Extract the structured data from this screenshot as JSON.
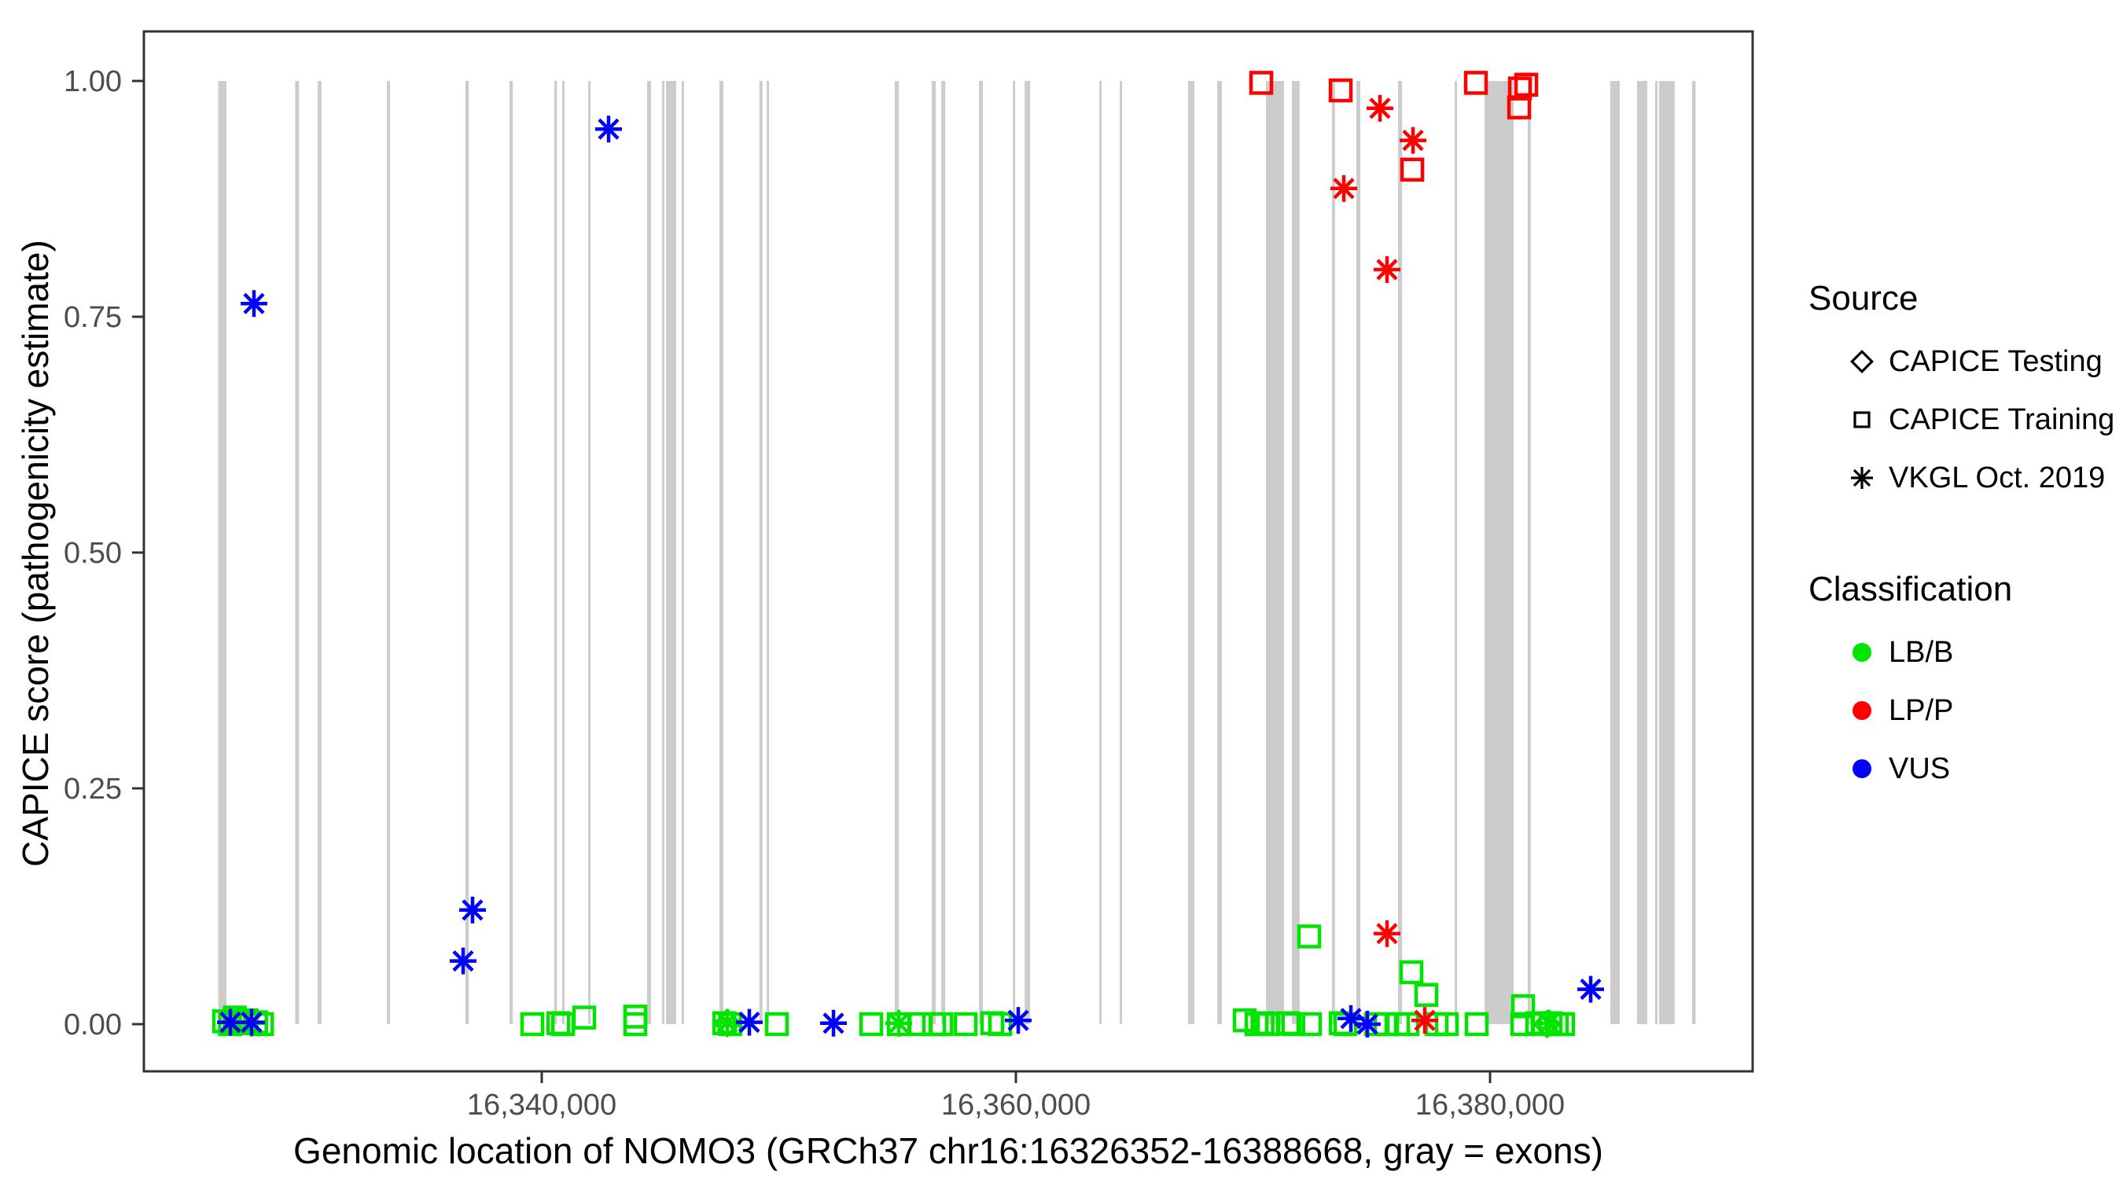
{
  "legend": {
    "source_title": "Source",
    "source_items": [
      {
        "symbol": "diamond",
        "label": "CAPICE Testing"
      },
      {
        "symbol": "square",
        "label": "CAPICE Training"
      },
      {
        "symbol": "asterisk",
        "label": "VKGL Oct. 2019"
      }
    ],
    "classification_title": "Classification",
    "classification_items": [
      {
        "color": "#00E400",
        "label": "LB/B"
      },
      {
        "color": "#FF0000",
        "label": "LP/P"
      },
      {
        "color": "#0000FF",
        "label": "VUS"
      }
    ]
  },
  "gene": {
    "name": "NOMO3",
    "assembly": "GRCh37",
    "chromosome": "chr16",
    "start": 16326352,
    "end": 16388668
  },
  "chart_data": {
    "type": "scatter",
    "title": "",
    "xlabel": "Genomic location of NOMO3 (GRCh37 chr16:16326352-16388668, gray = exons)",
    "ylabel": "CAPICE score (pathogenicity estimate)",
    "x_domain": [
      16323218,
      16391077
    ],
    "y_domain": [
      0,
      1
    ],
    "x_ticks": [
      {
        "value": 16340000,
        "label": "16,340,000"
      },
      {
        "value": 16360000,
        "label": "16,360,000"
      },
      {
        "value": 16380000,
        "label": "16,380,000"
      }
    ],
    "y_ticks": [
      {
        "value": 0.0,
        "label": "0.00"
      },
      {
        "value": 0.25,
        "label": "0.25"
      },
      {
        "value": 0.5,
        "label": "0.50"
      },
      {
        "value": 0.75,
        "label": "0.75"
      },
      {
        "value": 1.0,
        "label": "1.00"
      }
    ],
    "grid": false,
    "legend_position": "right",
    "exon_color": "#CCCCCC",
    "axis_text_color": "#4D4D4D",
    "border_color": "#333333",
    "classification_colors": {
      "LB/B": "#00E400",
      "LP/P": "#FF0000",
      "VUS": "#0000FF"
    },
    "source_shapes": {
      "CAPICE Testing": "diamond",
      "CAPICE Training": "square",
      "VKGL Oct. 2019": "asterisk"
    },
    "exons": [
      [
        16326352,
        16326700
      ],
      [
        16329600,
        16329760
      ],
      [
        16330550,
        16330710
      ],
      [
        16333470,
        16333600
      ],
      [
        16336780,
        16336920
      ],
      [
        16338640,
        16338780
      ],
      [
        16340530,
        16340640
      ],
      [
        16340860,
        16340960
      ],
      [
        16341960,
        16342060
      ],
      [
        16344440,
        16344610
      ],
      [
        16345070,
        16345170
      ],
      [
        16345240,
        16345670
      ],
      [
        16345900,
        16346000
      ],
      [
        16347490,
        16347660
      ],
      [
        16349180,
        16349310
      ],
      [
        16349490,
        16349590
      ],
      [
        16354890,
        16355060
      ],
      [
        16356450,
        16356620
      ],
      [
        16356850,
        16357020
      ],
      [
        16358440,
        16358610
      ],
      [
        16359870,
        16359970
      ],
      [
        16360370,
        16360600
      ],
      [
        16363520,
        16363620
      ],
      [
        16364380,
        16364480
      ],
      [
        16367260,
        16367530
      ],
      [
        16368490,
        16368690
      ],
      [
        16370550,
        16371310
      ],
      [
        16371640,
        16371970
      ],
      [
        16373330,
        16373460
      ],
      [
        16374360,
        16374530
      ],
      [
        16376120,
        16376290
      ],
      [
        16378510,
        16378610
      ],
      [
        16379770,
        16381000
      ],
      [
        16381590,
        16381720
      ],
      [
        16385070,
        16385470
      ],
      [
        16386200,
        16386630
      ],
      [
        16386960,
        16387030
      ],
      [
        16387130,
        16387790
      ],
      [
        16388520,
        16388668
      ]
    ],
    "points": [
      {
        "source": "CAPICE Training",
        "classification": "LB/B",
        "position": 16326600,
        "score": 0.003
      },
      {
        "source": "CAPICE Training",
        "classification": "LB/B",
        "position": 16326850,
        "score": 0.0
      },
      {
        "source": "CAPICE Training",
        "classification": "LB/B",
        "position": 16327050,
        "score": 0.007
      },
      {
        "source": "CAPICE Training",
        "classification": "LB/B",
        "position": 16327250,
        "score": 0.001
      },
      {
        "source": "CAPICE Training",
        "classification": "LB/B",
        "position": 16327550,
        "score": 0.004
      },
      {
        "source": "CAPICE Training",
        "classification": "LB/B",
        "position": 16327950,
        "score": 0.002
      },
      {
        "source": "CAPICE Training",
        "classification": "LB/B",
        "position": 16328200,
        "score": 0.0
      },
      {
        "source": "CAPICE Training",
        "classification": "LB/B",
        "position": 16339602,
        "score": 0.0
      },
      {
        "source": "CAPICE Training",
        "classification": "LB/B",
        "position": 16340700,
        "score": 0.001
      },
      {
        "source": "CAPICE Training",
        "classification": "LB/B",
        "position": 16340900,
        "score": 0.0
      },
      {
        "source": "CAPICE Training",
        "classification": "LB/B",
        "position": 16341791,
        "score": 0.007
      },
      {
        "source": "CAPICE Training",
        "classification": "LB/B",
        "position": 16343947,
        "score": 0.008
      },
      {
        "source": "CAPICE Training",
        "classification": "LB/B",
        "position": 16343947,
        "score": 0.0
      },
      {
        "source": "CAPICE Training",
        "classification": "LB/B",
        "position": 16347700,
        "score": 0.001
      },
      {
        "source": "CAPICE Training",
        "classification": "LB/B",
        "position": 16347950,
        "score": 0.0
      },
      {
        "source": "CAPICE Training",
        "classification": "LB/B",
        "position": 16349917,
        "score": 0.0
      },
      {
        "source": "CAPICE Training",
        "classification": "LB/B",
        "position": 16353897,
        "score": 0.0
      },
      {
        "source": "CAPICE Training",
        "classification": "LB/B",
        "position": 16355058,
        "score": 0.0
      },
      {
        "source": "CAPICE Training",
        "classification": "LB/B",
        "position": 16355954,
        "score": 0.0
      },
      {
        "source": "CAPICE Training",
        "classification": "LB/B",
        "position": 16356551,
        "score": 0.0
      },
      {
        "source": "CAPICE Training",
        "classification": "LB/B",
        "position": 16356849,
        "score": 0.0
      },
      {
        "source": "CAPICE Training",
        "classification": "LB/B",
        "position": 16357877,
        "score": 0.0
      },
      {
        "source": "CAPICE Training",
        "classification": "LB/B",
        "position": 16359005,
        "score": 0.001
      },
      {
        "source": "CAPICE Training",
        "classification": "LB/B",
        "position": 16359337,
        "score": 0.0
      },
      {
        "source": "CAPICE Training",
        "classification": "LB/B",
        "position": 16369652,
        "score": 0.004
      },
      {
        "source": "CAPICE Training",
        "classification": "LB/B",
        "position": 16370150,
        "score": 0.0
      },
      {
        "source": "CAPICE Training",
        "classification": "LB/B",
        "position": 16370400,
        "score": 0.001
      },
      {
        "source": "CAPICE Training",
        "classification": "LB/B",
        "position": 16370650,
        "score": 0.0
      },
      {
        "source": "CAPICE Training",
        "classification": "LB/B",
        "position": 16371475,
        "score": 0.001
      },
      {
        "source": "CAPICE Training",
        "classification": "LB/B",
        "position": 16371700,
        "score": 0.0
      },
      {
        "source": "CAPICE Training",
        "classification": "LB/B",
        "position": 16372371,
        "score": 0.093
      },
      {
        "source": "CAPICE Training",
        "classification": "LB/B",
        "position": 16372404,
        "score": 0.0
      },
      {
        "source": "CAPICE Training",
        "classification": "LB/B",
        "position": 16373699,
        "score": 0.001
      },
      {
        "source": "CAPICE Training",
        "classification": "LB/B",
        "position": 16373900,
        "score": 0.0
      },
      {
        "source": "CAPICE Training",
        "classification": "LB/B",
        "position": 16375190,
        "score": 0.0
      },
      {
        "source": "CAPICE Training",
        "classification": "LB/B",
        "position": 16375588,
        "score": 0.0
      },
      {
        "source": "CAPICE Training",
        "classification": "LB/B",
        "position": 16376119,
        "score": 0.0
      },
      {
        "source": "CAPICE Training",
        "classification": "LB/B",
        "position": 16376517,
        "score": 0.0
      },
      {
        "source": "CAPICE Training",
        "classification": "LB/B",
        "position": 16376683,
        "score": 0.055
      },
      {
        "source": "CAPICE Training",
        "classification": "LB/B",
        "position": 16377313,
        "score": 0.031
      },
      {
        "source": "CAPICE Training",
        "classification": "LB/B",
        "position": 16377744,
        "score": 0.0
      },
      {
        "source": "CAPICE Training",
        "classification": "LB/B",
        "position": 16378175,
        "score": 0.0
      },
      {
        "source": "CAPICE Training",
        "classification": "LB/B",
        "position": 16379436,
        "score": 0.0
      },
      {
        "source": "CAPICE Training",
        "classification": "LB/B",
        "position": 16381394,
        "score": 0.019
      },
      {
        "source": "CAPICE Training",
        "classification": "LB/B",
        "position": 16381361,
        "score": 0.0
      },
      {
        "source": "CAPICE Training",
        "classification": "LB/B",
        "position": 16381989,
        "score": 0.001
      },
      {
        "source": "CAPICE Training",
        "classification": "LB/B",
        "position": 16382254,
        "score": 0.0
      },
      {
        "source": "CAPICE Training",
        "classification": "LB/B",
        "position": 16382553,
        "score": 0.001
      },
      {
        "source": "CAPICE Training",
        "classification": "LB/B",
        "position": 16382818,
        "score": 0.0
      },
      {
        "source": "CAPICE Training",
        "classification": "LB/B",
        "position": 16383083,
        "score": 0.0
      },
      {
        "source": "CAPICE Testing",
        "classification": "LB/B",
        "position": 16347827,
        "score": 0.001
      },
      {
        "source": "CAPICE Testing",
        "classification": "LB/B",
        "position": 16382400,
        "score": 0.0
      },
      {
        "source": "CAPICE Training",
        "classification": "LP/P",
        "position": 16370348,
        "score": 0.998
      },
      {
        "source": "CAPICE Training",
        "classification": "LP/P",
        "position": 16373699,
        "score": 0.99
      },
      {
        "source": "CAPICE Training",
        "classification": "LP/P",
        "position": 16376717,
        "score": 0.906
      },
      {
        "source": "CAPICE Training",
        "classification": "LP/P",
        "position": 16379403,
        "score": 0.998
      },
      {
        "source": "CAPICE Training",
        "classification": "LP/P",
        "position": 16381261,
        "score": 0.992
      },
      {
        "source": "CAPICE Training",
        "classification": "LP/P",
        "position": 16381527,
        "score": 0.996
      },
      {
        "source": "CAPICE Training",
        "classification": "LP/P",
        "position": 16381228,
        "score": 0.972
      },
      {
        "source": "VKGL Oct. 2019",
        "classification": "LB/B",
        "position": 16327761,
        "score": 0.001
      },
      {
        "source": "VKGL Oct. 2019",
        "classification": "LB/B",
        "position": 16347827,
        "score": 0.002
      },
      {
        "source": "VKGL Oct. 2019",
        "classification": "LB/B",
        "position": 16355058,
        "score": 0.001
      },
      {
        "source": "VKGL Oct. 2019",
        "classification": "LB/B",
        "position": 16382486,
        "score": 0.001
      },
      {
        "source": "VKGL Oct. 2019",
        "classification": "LP/P",
        "position": 16373831,
        "score": 0.886
      },
      {
        "source": "VKGL Oct. 2019",
        "classification": "LP/P",
        "position": 16375357,
        "score": 0.971
      },
      {
        "source": "VKGL Oct. 2019",
        "classification": "LP/P",
        "position": 16375655,
        "score": 0.8
      },
      {
        "source": "VKGL Oct. 2019",
        "classification": "LP/P",
        "position": 16376750,
        "score": 0.937
      },
      {
        "source": "VKGL Oct. 2019",
        "classification": "LP/P",
        "position": 16375655,
        "score": 0.096
      },
      {
        "source": "VKGL Oct. 2019",
        "classification": "LP/P",
        "position": 16377247,
        "score": 0.004
      },
      {
        "source": "VKGL Oct. 2019",
        "classification": "VUS",
        "position": 16326866,
        "score": 0.002
      },
      {
        "source": "VKGL Oct. 2019",
        "classification": "VUS",
        "position": 16327761,
        "score": 0.002
      },
      {
        "source": "VKGL Oct. 2019",
        "classification": "VUS",
        "position": 16327861,
        "score": 0.764
      },
      {
        "source": "VKGL Oct. 2019",
        "classification": "VUS",
        "position": 16336683,
        "score": 0.067
      },
      {
        "source": "VKGL Oct. 2019",
        "classification": "VUS",
        "position": 16337081,
        "score": 0.121
      },
      {
        "source": "VKGL Oct. 2019",
        "classification": "VUS",
        "position": 16342819,
        "score": 0.949
      },
      {
        "source": "VKGL Oct. 2019",
        "classification": "VUS",
        "position": 16348756,
        "score": 0.002
      },
      {
        "source": "VKGL Oct. 2019",
        "classification": "VUS",
        "position": 16352305,
        "score": 0.001
      },
      {
        "source": "VKGL Oct. 2019",
        "classification": "VUS",
        "position": 16360100,
        "score": 0.004
      },
      {
        "source": "VKGL Oct. 2019",
        "classification": "VUS",
        "position": 16374130,
        "score": 0.006
      },
      {
        "source": "VKGL Oct. 2019",
        "classification": "VUS",
        "position": 16374826,
        "score": 0.0
      },
      {
        "source": "VKGL Oct. 2019",
        "classification": "VUS",
        "position": 16384245,
        "score": 0.037
      }
    ]
  }
}
